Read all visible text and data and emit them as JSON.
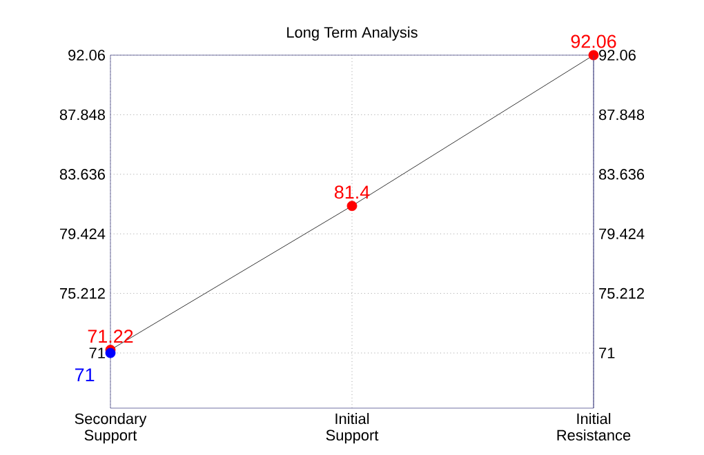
{
  "chart_data": {
    "type": "line",
    "title": "Long Term Analysis",
    "categories": [
      "Secondary Support",
      "Initial Support",
      "Initial Resistance"
    ],
    "series": [
      {
        "color": "#000000",
        "marker": "none",
        "values": [
          71.22,
          81.4,
          92.06
        ]
      },
      {
        "type": "scatter",
        "color": "#ff0000",
        "marker": "circle",
        "values": [
          71.22,
          81.4,
          92.06
        ],
        "value_labels": [
          "71.22",
          "81.4",
          "92.06"
        ]
      },
      {
        "type": "scatter",
        "color": "#0000ff",
        "marker": "circle",
        "values": [
          71,
          null,
          null
        ],
        "value_labels": [
          "71",
          null,
          null
        ]
      }
    ],
    "ylim": [
      67.1,
      92.06
    ],
    "yticks": [
      71,
      75.212,
      79.424,
      83.636,
      87.848,
      92.06
    ],
    "y2lim": [
      67.1,
      92.06
    ],
    "y2ticks": [
      71,
      75.212,
      79.424,
      83.636,
      87.848,
      92.06
    ],
    "grid": true
  }
}
